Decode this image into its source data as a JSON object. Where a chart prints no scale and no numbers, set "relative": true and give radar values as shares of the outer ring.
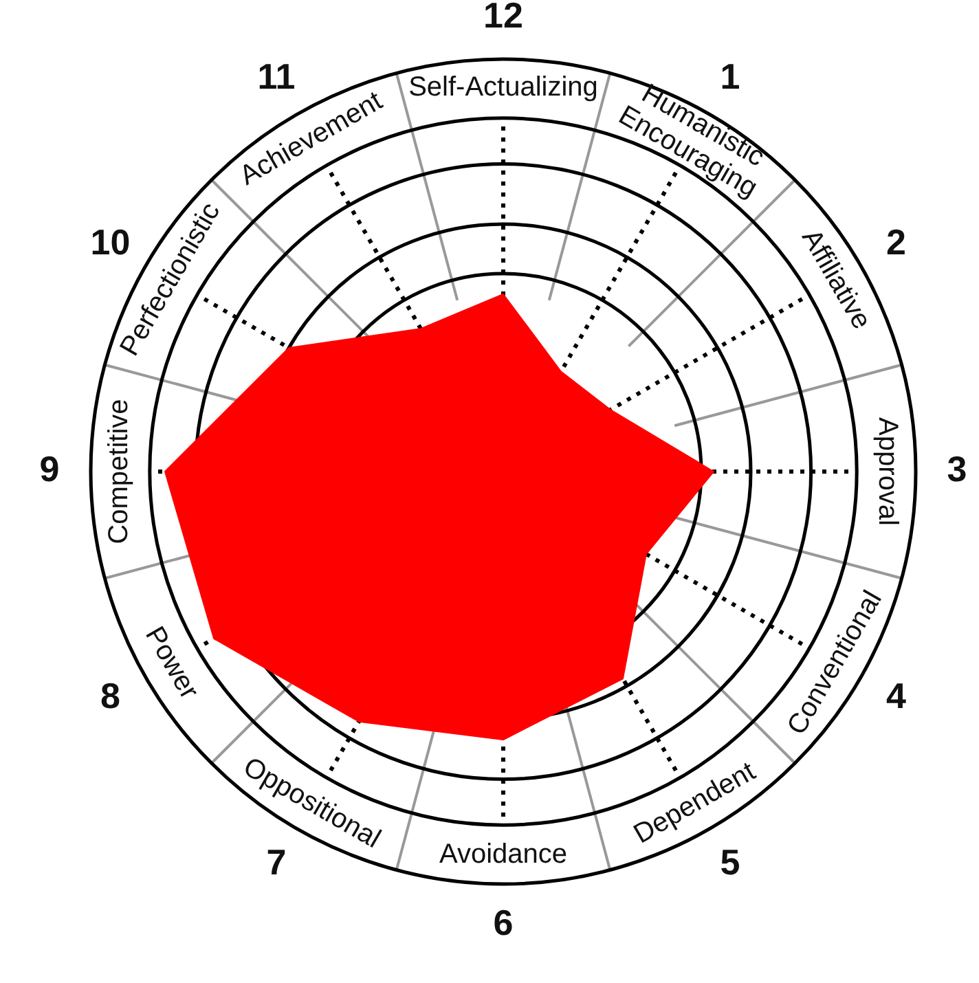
{
  "chart_data": {
    "type": "radar",
    "relative": true,
    "categories": [
      "Self-Actualizing",
      "Humanistic\nEncouraging",
      "Affiliative",
      "Approval",
      "Conventional",
      "Dependent",
      "Avoidance",
      "Oppositional",
      "Power",
      "Competitive",
      "Perfectionistic",
      "Achievement"
    ],
    "series": [
      {
        "color": "#ff0000",
        "values": [
          0.43,
          0.28,
          0.3,
          0.51,
          0.4,
          0.58,
          0.65,
          0.7,
          0.81,
          0.82,
          0.6,
          0.4
        ]
      }
    ],
    "annotations": [
      "12",
      "1",
      "2",
      "3",
      "4",
      "5",
      "6",
      "7",
      "8",
      "9",
      "10",
      "11"
    ]
  }
}
